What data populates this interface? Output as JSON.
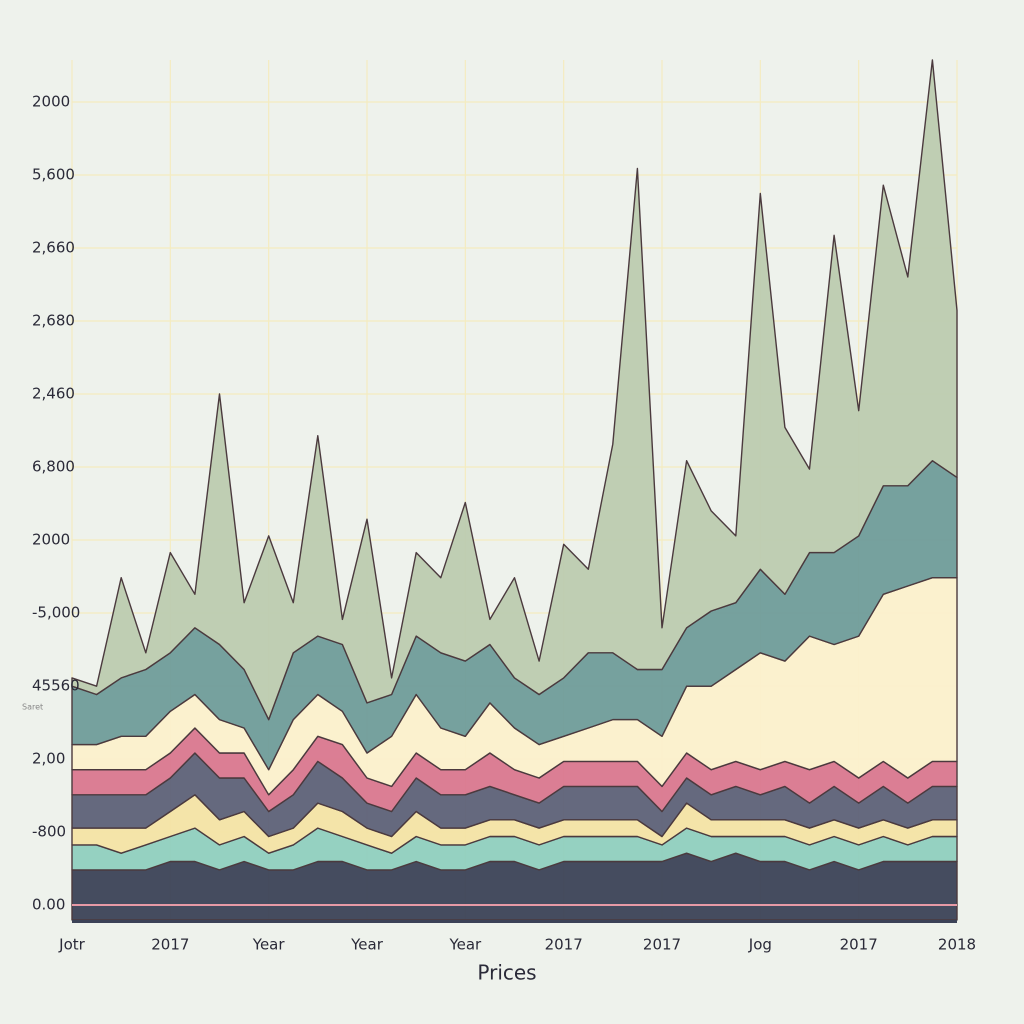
{
  "chart_data": {
    "type": "area",
    "stacked": true,
    "x_axis_label": "Prices",
    "annotation": "Saret",
    "y_axis_labels": [
      "2000",
      "5,600",
      "2,660",
      "2,680",
      "2,460",
      "6,800",
      "2000",
      "-5,000",
      "45560",
      "2,00",
      "-800",
      "0.00"
    ],
    "x_labels": [
      "Jotr",
      "2017",
      "Year",
      "Year",
      "Year",
      "2017",
      "2017",
      "Jog",
      "2017",
      "2018"
    ],
    "ylim": [
      0,
      100
    ],
    "grid": true,
    "series": [
      {
        "color": "#3b4257",
        "values": [
          6,
          6,
          6,
          6,
          7,
          7,
          6,
          7,
          6,
          6,
          7,
          7,
          6,
          6,
          7,
          6,
          6,
          7,
          7,
          6,
          7,
          7,
          7,
          7,
          7,
          8,
          7,
          8,
          7,
          7,
          6,
          7,
          6,
          7,
          7,
          7,
          7
        ]
      },
      {
        "color": "#8fcfbf",
        "values": [
          3,
          3,
          2,
          3,
          3,
          4,
          3,
          3,
          2,
          3,
          4,
          3,
          3,
          2,
          3,
          3,
          3,
          3,
          3,
          3,
          3,
          3,
          3,
          3,
          2,
          3,
          3,
          2,
          3,
          3,
          3,
          3,
          3,
          3,
          2,
          3,
          3
        ]
      },
      {
        "color": "#f3e3a5",
        "values": [
          2,
          2,
          3,
          2,
          3,
          4,
          3,
          3,
          2,
          2,
          3,
          3,
          2,
          2,
          3,
          2,
          2,
          2,
          2,
          2,
          2,
          2,
          2,
          2,
          1,
          3,
          2,
          2,
          2,
          2,
          2,
          2,
          2,
          2,
          2,
          2,
          2
        ]
      },
      {
        "color": "#5d6178",
        "values": [
          4,
          4,
          4,
          4,
          4,
          5,
          5,
          4,
          3,
          4,
          5,
          4,
          3,
          3,
          4,
          4,
          4,
          4,
          3,
          3,
          4,
          4,
          4,
          4,
          3,
          3,
          3,
          4,
          3,
          4,
          3,
          4,
          3,
          4,
          3,
          4,
          4
        ]
      },
      {
        "color": "#d9778f",
        "values": [
          3,
          3,
          3,
          3,
          3,
          3,
          3,
          3,
          2,
          3,
          3,
          4,
          3,
          3,
          3,
          3,
          3,
          4,
          3,
          3,
          3,
          3,
          3,
          3,
          3,
          3,
          3,
          3,
          3,
          3,
          4,
          3,
          3,
          3,
          3,
          3,
          3
        ]
      },
      {
        "color": "#fbf0cc",
        "values": [
          3,
          3,
          4,
          4,
          5,
          4,
          4,
          3,
          3,
          6,
          5,
          4,
          3,
          6,
          7,
          5,
          4,
          6,
          5,
          4,
          3,
          4,
          5,
          5,
          6,
          8,
          10,
          11,
          14,
          12,
          16,
          14,
          17,
          20,
          23,
          22,
          22
        ]
      },
      {
        "color": "#6f9c9a",
        "values": [
          7,
          6,
          7,
          8,
          7,
          8,
          9,
          7,
          6,
          8,
          7,
          8,
          6,
          5,
          7,
          9,
          9,
          7,
          6,
          6,
          7,
          9,
          8,
          6,
          8,
          7,
          9,
          8,
          10,
          8,
          10,
          11,
          12,
          13,
          12,
          14,
          12
        ]
      },
      {
        "color": "#bccbb0",
        "values": [
          1,
          1,
          12,
          2,
          12,
          4,
          30,
          8,
          22,
          6,
          24,
          3,
          22,
          2,
          10,
          9,
          19,
          3,
          12,
          4,
          16,
          10,
          25,
          60,
          5,
          20,
          12,
          8,
          45,
          20,
          10,
          38,
          15,
          36,
          25,
          48,
          20
        ]
      }
    ]
  }
}
